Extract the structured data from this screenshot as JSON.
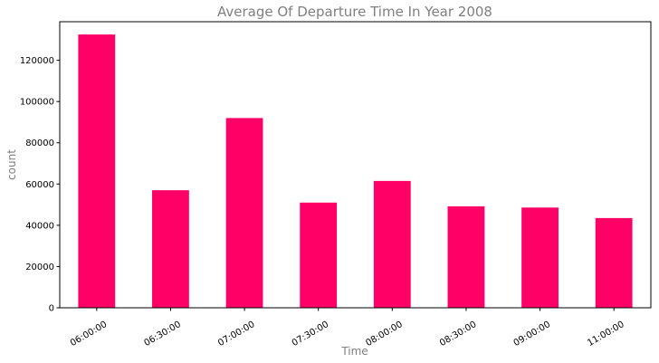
{
  "chart_data": {
    "type": "bar",
    "title": "Average Of Departure Time In Year 2008",
    "xlabel": "Time",
    "ylabel": "count",
    "categories": [
      "06:00:00",
      "06:30:00",
      "07:00:00",
      "07:30:00",
      "08:00:00",
      "08:30:00",
      "09:00:00",
      "11:00:00"
    ],
    "values": [
      132500,
      57000,
      92000,
      51000,
      61500,
      49200,
      48600,
      43500
    ],
    "ylim": [
      0,
      138700
    ],
    "yticks": [
      0,
      20000,
      40000,
      60000,
      80000,
      100000,
      120000
    ],
    "ytick_labels": [
      "0",
      "20000",
      "40000",
      "60000",
      "80000",
      "100000",
      "120000"
    ],
    "bar_color": "#ff0066",
    "grid": false,
    "legend": "none"
  }
}
